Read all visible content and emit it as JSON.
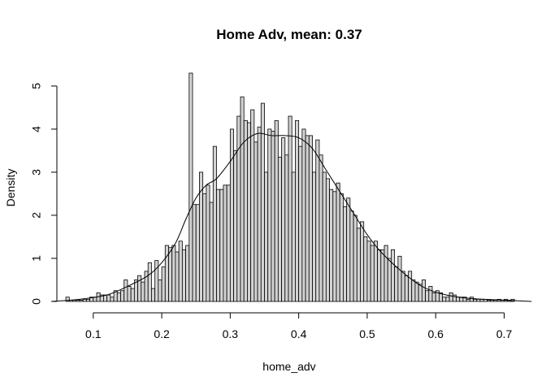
{
  "chart_data": {
    "type": "bar",
    "title": "Home Adv, mean: 0.37",
    "xlabel": "home_adv",
    "ylabel": "Density",
    "xlim": [
      0.035,
      0.735
    ],
    "ylim": [
      0,
      5.3
    ],
    "x_ticks": [
      0.1,
      0.2,
      0.3,
      0.4,
      0.5,
      0.6,
      0.7
    ],
    "x_tick_labels": [
      "0.1",
      "0.2",
      "0.3",
      "0.4",
      "0.5",
      "0.6",
      "0.7"
    ],
    "y_ticks": [
      0,
      1,
      2,
      3,
      4,
      5
    ],
    "y_tick_labels": [
      "0",
      "1",
      "2",
      "3",
      "4",
      "5"
    ],
    "grid": false,
    "histogram": {
      "bin_start": 0.06,
      "bin_width": 0.005,
      "values": [
        0.1,
        0.03,
        0.03,
        0.03,
        0.03,
        0.05,
        0.05,
        0.1,
        0.1,
        0.2,
        0.15,
        0.15,
        0.15,
        0.1,
        0.25,
        0.2,
        0.25,
        0.5,
        0.35,
        0.3,
        0.5,
        0.6,
        0.45,
        0.7,
        0.9,
        0.3,
        0.95,
        0.5,
        0.8,
        1.3,
        1.25,
        1.3,
        1.15,
        1.4,
        1.2,
        1.3,
        5.3,
        2.25,
        2.25,
        3.0,
        2.5,
        2.7,
        2.3,
        3.6,
        2.6,
        2.6,
        2.7,
        2.7,
        4.0,
        3.5,
        4.3,
        4.75,
        4.2,
        4.15,
        4.45,
        3.7,
        4.05,
        4.6,
        3.0,
        4.0,
        3.95,
        4.2,
        3.35,
        3.8,
        3.4,
        4.3,
        3.0,
        4.2,
        3.6,
        4.0,
        3.85,
        3.85,
        3.0,
        3.75,
        3.4,
        3.0,
        2.85,
        2.6,
        2.55,
        2.75,
        2.5,
        2.2,
        2.4,
        2.1,
        2.0,
        1.7,
        1.85,
        1.5,
        1.4,
        1.3,
        1.4,
        1.2,
        1.2,
        1.3,
        1.0,
        1.2,
        0.8,
        1.05,
        0.7,
        0.6,
        0.7,
        0.5,
        0.45,
        0.4,
        0.5,
        0.25,
        0.35,
        0.2,
        0.25,
        0.2,
        0.1,
        0.1,
        0.2,
        0.15,
        0.1,
        0.1,
        0.1,
        0.05,
        0.1,
        0.05,
        0.05,
        0.05,
        0.05,
        0.03,
        0.03,
        0.03,
        0.05,
        0.03,
        0.05,
        0.03,
        0.05
      ]
    },
    "density_curve": {
      "x": [
        0.04,
        0.08,
        0.12,
        0.15,
        0.18,
        0.2,
        0.22,
        0.235,
        0.25,
        0.265,
        0.28,
        0.3,
        0.32,
        0.34,
        0.36,
        0.38,
        0.4,
        0.42,
        0.44,
        0.46,
        0.48,
        0.5,
        0.52,
        0.55,
        0.58,
        0.61,
        0.65,
        0.7,
        0.74
      ],
      "y": [
        0.0,
        0.05,
        0.15,
        0.35,
        0.6,
        0.9,
        1.35,
        1.9,
        2.4,
        2.7,
        2.85,
        3.25,
        3.7,
        3.9,
        3.85,
        3.85,
        3.8,
        3.55,
        3.05,
        2.55,
        2.05,
        1.55,
        1.15,
        0.7,
        0.35,
        0.17,
        0.07,
        0.03,
        0.0
      ]
    }
  }
}
